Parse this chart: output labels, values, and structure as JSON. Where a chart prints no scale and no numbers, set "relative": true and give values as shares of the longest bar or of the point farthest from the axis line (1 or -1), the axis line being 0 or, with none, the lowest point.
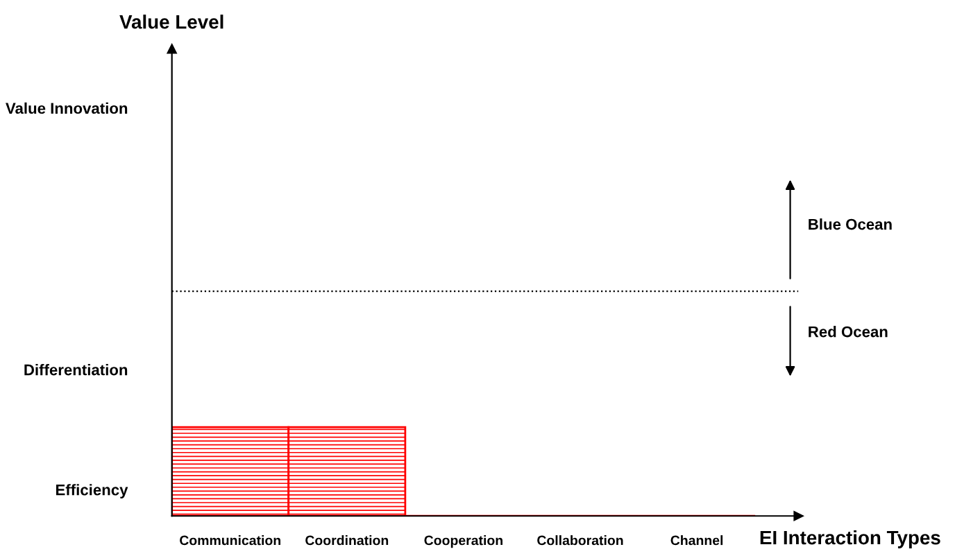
{
  "chart_data": {
    "type": "bar",
    "xlabel": "EI Interaction Types",
    "relative": true,
    "categories": [
      "Communication",
      "Coordination",
      "Cooperation",
      "Collaboration",
      "Channel"
    ],
    "series": [
      {
        "color": "#ff0000",
        "values": [
          1,
          1,
          0,
          0,
          0
        ]
      }
    ],
    "ref_lines": [
      {
        "axis": "y",
        "value": 2.53,
        "line_style": "dotted",
        "color": "#000000"
      }
    ],
    "annotations": [
      "Efficiency",
      "Differentiation",
      "Value Innovation",
      "Blue Ocean",
      "Red Ocean",
      "Value Level"
    ],
    "grid": false,
    "legend": false
  }
}
